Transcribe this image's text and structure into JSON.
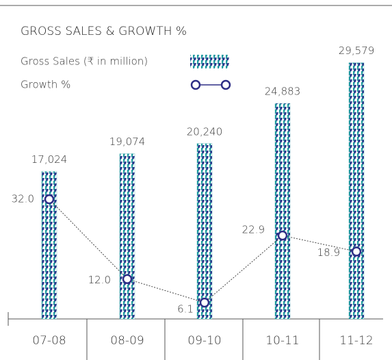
{
  "chart_data": {
    "type": "bar_line",
    "title": "GROSS SALES & GROWTH %",
    "categories": [
      "07-08",
      "08-09",
      "09-10",
      "10-11",
      "11-12"
    ],
    "series": [
      {
        "name": "Gross Sales (₹ in million)",
        "color": "#1f9aa0",
        "values": [
          17024,
          19074,
          20240,
          24883,
          29579
        ],
        "value_labels": [
          "17,024",
          "19,074",
          "20,240",
          "24,883",
          "29,579"
        ]
      },
      {
        "name": "Growth %",
        "color": "#2e2e86",
        "axis": "y2",
        "values": [
          32.0,
          12.0,
          6.1,
          22.9,
          18.9
        ],
        "value_labels": [
          "32.0",
          "12.0",
          "6.1",
          "22.9",
          "18.9"
        ]
      }
    ],
    "ylim": [
      0,
      35000
    ],
    "y2lim": [
      2,
      78
    ]
  }
}
